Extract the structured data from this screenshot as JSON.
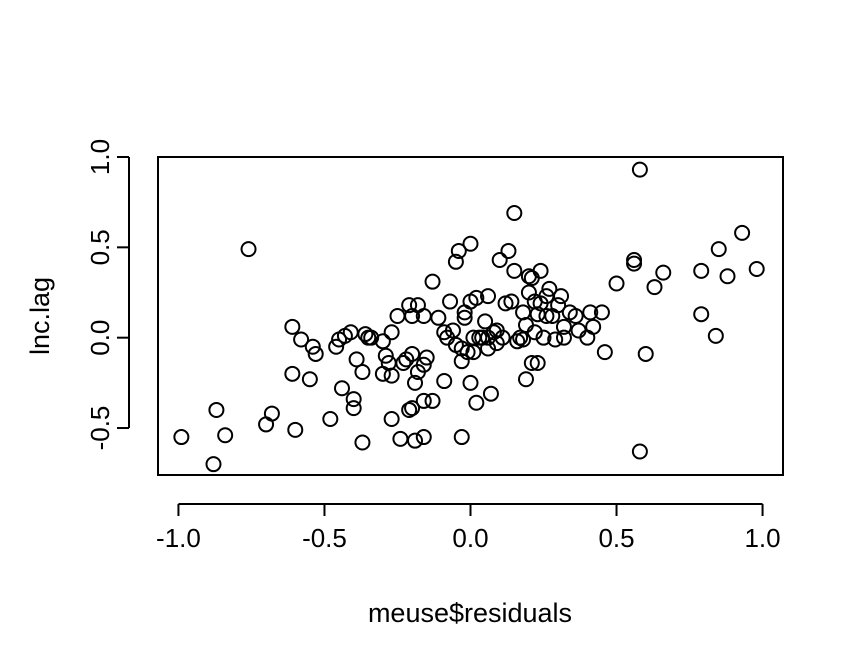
{
  "chart_data": {
    "type": "scatter",
    "title": "",
    "xlabel": "meuse$residuals",
    "ylabel": "lnc.lag",
    "xlim": [
      -1.07,
      1.07
    ],
    "ylim": [
      -0.76,
      1.0
    ],
    "xticks": [
      -1.0,
      -0.5,
      0.0,
      0.5,
      1.0
    ],
    "xtick_labels": [
      "-1.0",
      "-0.5",
      "0.0",
      "0.5",
      "1.0"
    ],
    "yticks": [
      -0.5,
      0.0,
      0.5,
      1.0
    ],
    "ytick_labels": [
      "-0.5",
      "0.0",
      "0.5",
      "1.0"
    ],
    "grid": false,
    "legend": "none",
    "points": [
      [
        -0.99,
        -0.55
      ],
      [
        -0.88,
        -0.7
      ],
      [
        -0.87,
        -0.4
      ],
      [
        -0.84,
        -0.54
      ],
      [
        -0.76,
        0.49
      ],
      [
        -0.7,
        -0.48
      ],
      [
        -0.68,
        -0.42
      ],
      [
        -0.61,
        0.06
      ],
      [
        -0.61,
        -0.2
      ],
      [
        -0.6,
        -0.51
      ],
      [
        -0.58,
        -0.01
      ],
      [
        -0.55,
        -0.23
      ],
      [
        -0.54,
        -0.05
      ],
      [
        -0.53,
        -0.09
      ],
      [
        -0.48,
        -0.45
      ],
      [
        -0.46,
        -0.05
      ],
      [
        -0.45,
        -0.01
      ],
      [
        -0.44,
        -0.28
      ],
      [
        -0.43,
        0.01
      ],
      [
        -0.41,
        0.03
      ],
      [
        -0.4,
        -0.34
      ],
      [
        -0.4,
        -0.39
      ],
      [
        -0.39,
        -0.12
      ],
      [
        -0.37,
        -0.19
      ],
      [
        -0.37,
        -0.58
      ],
      [
        -0.36,
        0.02
      ],
      [
        -0.35,
        0.0
      ],
      [
        -0.34,
        0.0
      ],
      [
        -0.3,
        -0.02
      ],
      [
        -0.3,
        -0.2
      ],
      [
        -0.29,
        -0.1
      ],
      [
        -0.28,
        -0.14
      ],
      [
        -0.27,
        -0.21
      ],
      [
        -0.27,
        -0.45
      ],
      [
        -0.27,
        0.03
      ],
      [
        -0.25,
        0.12
      ],
      [
        -0.24,
        -0.56
      ],
      [
        -0.23,
        -0.14
      ],
      [
        -0.22,
        -0.12
      ],
      [
        -0.21,
        0.18
      ],
      [
        -0.21,
        -0.4
      ],
      [
        -0.2,
        0.12
      ],
      [
        -0.2,
        -0.39
      ],
      [
        -0.2,
        -0.09
      ],
      [
        -0.19,
        -0.25
      ],
      [
        -0.19,
        -0.57
      ],
      [
        -0.18,
        0.18
      ],
      [
        -0.18,
        -0.19
      ],
      [
        -0.16,
        -0.35
      ],
      [
        -0.16,
        0.12
      ],
      [
        -0.16,
        -0.55
      ],
      [
        -0.16,
        -0.15
      ],
      [
        -0.15,
        -0.11
      ],
      [
        -0.13,
        0.31
      ],
      [
        -0.13,
        -0.35
      ],
      [
        -0.11,
        0.11
      ],
      [
        -0.09,
        0.03
      ],
      [
        -0.09,
        -0.24
      ],
      [
        -0.08,
        0.0
      ],
      [
        -0.07,
        0.2
      ],
      [
        -0.06,
        0.04
      ],
      [
        -0.05,
        -0.04
      ],
      [
        -0.05,
        0.42
      ],
      [
        -0.04,
        0.48
      ],
      [
        -0.03,
        -0.06
      ],
      [
        -0.03,
        -0.55
      ],
      [
        -0.03,
        -0.13
      ],
      [
        -0.02,
        0.11
      ],
      [
        -0.02,
        0.14
      ],
      [
        -0.01,
        -0.08
      ],
      [
        0.0,
        0.52
      ],
      [
        0.0,
        -0.25
      ],
      [
        0.0,
        0.2
      ],
      [
        0.01,
        -0.08
      ],
      [
        0.01,
        0.0
      ],
      [
        0.02,
        0.22
      ],
      [
        0.02,
        -0.36
      ],
      [
        0.03,
        0.0
      ],
      [
        0.04,
        0.0
      ],
      [
        0.05,
        0.09
      ],
      [
        0.06,
        0.23
      ],
      [
        0.06,
        -0.06
      ],
      [
        0.06,
        0.0
      ],
      [
        0.07,
        -0.31
      ],
      [
        0.08,
        0.03
      ],
      [
        0.09,
        -0.03
      ],
      [
        0.09,
        0.04
      ],
      [
        0.1,
        0.43
      ],
      [
        0.11,
        0.0
      ],
      [
        0.12,
        0.19
      ],
      [
        0.13,
        0.48
      ],
      [
        0.14,
        0.2
      ],
      [
        0.15,
        0.37
      ],
      [
        0.15,
        0.69
      ],
      [
        0.16,
        -0.02
      ],
      [
        0.17,
        0.0
      ],
      [
        0.18,
        0.14
      ],
      [
        0.18,
        -0.01
      ],
      [
        0.19,
        0.07
      ],
      [
        0.19,
        -0.23
      ],
      [
        0.2,
        0.25
      ],
      [
        0.2,
        0.34
      ],
      [
        0.21,
        0.33
      ],
      [
        0.21,
        -0.14
      ],
      [
        0.22,
        0.2
      ],
      [
        0.22,
        0.03
      ],
      [
        0.23,
        0.13
      ],
      [
        0.23,
        -0.14
      ],
      [
        0.24,
        0.37
      ],
      [
        0.24,
        0.19
      ],
      [
        0.25,
        0.0
      ],
      [
        0.26,
        0.12
      ],
      [
        0.26,
        0.23
      ],
      [
        0.27,
        0.27
      ],
      [
        0.28,
        0.12
      ],
      [
        0.29,
        -0.01
      ],
      [
        0.3,
        0.18
      ],
      [
        0.31,
        0.23
      ],
      [
        0.32,
        0.0
      ],
      [
        0.32,
        0.06
      ],
      [
        0.34,
        0.14
      ],
      [
        0.36,
        0.12
      ],
      [
        0.37,
        0.04
      ],
      [
        0.4,
        0.0
      ],
      [
        0.41,
        0.14
      ],
      [
        0.42,
        0.06
      ],
      [
        0.45,
        0.14
      ],
      [
        0.46,
        -0.08
      ],
      [
        0.5,
        0.3
      ],
      [
        0.56,
        0.43
      ],
      [
        0.56,
        0.41
      ],
      [
        0.58,
        0.93
      ],
      [
        0.58,
        -0.63
      ],
      [
        0.6,
        -0.09
      ],
      [
        0.63,
        0.28
      ],
      [
        0.66,
        0.36
      ],
      [
        0.79,
        0.13
      ],
      [
        0.79,
        0.37
      ],
      [
        0.84,
        0.01
      ],
      [
        0.85,
        0.49
      ],
      [
        0.88,
        0.34
      ],
      [
        0.93,
        0.58
      ],
      [
        0.98,
        0.38
      ]
    ]
  }
}
